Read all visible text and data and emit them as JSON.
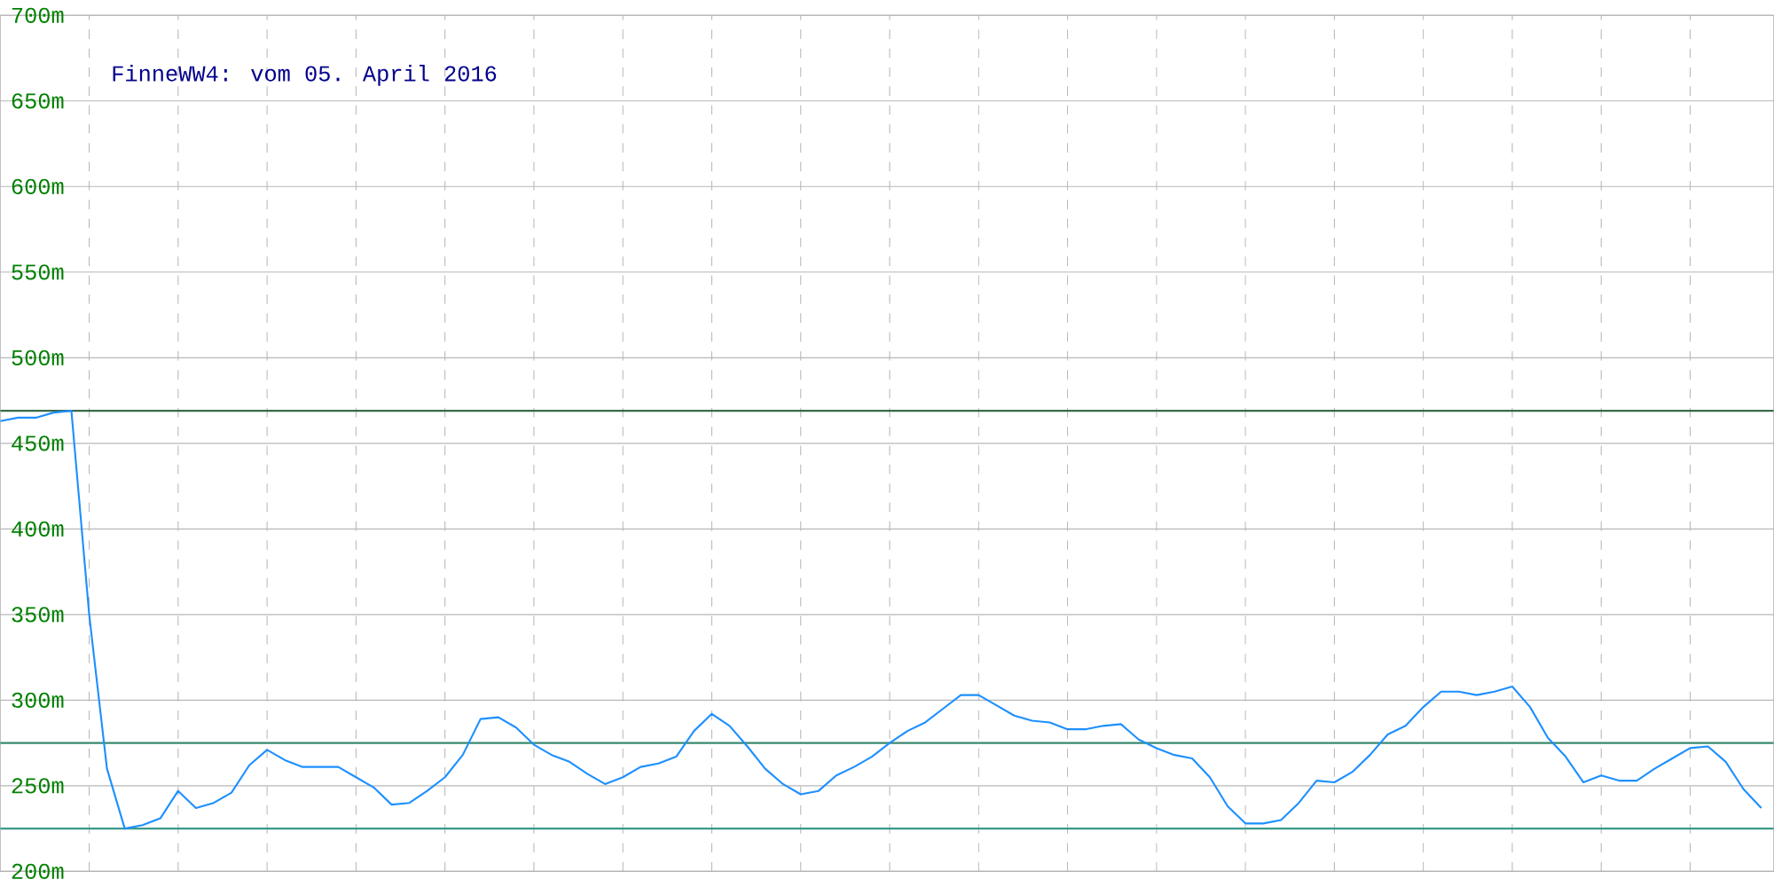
{
  "chart_data": {
    "type": "line",
    "title": "FinneWW4: vom 05. April 2016",
    "categories": [
      null,
      null,
      null,
      null,
      null,
      null,
      null,
      null,
      null,
      null,
      null,
      null,
      null,
      null,
      null,
      null,
      null,
      null,
      null,
      null,
      null,
      null,
      null,
      null,
      null,
      null,
      null,
      null,
      null,
      null,
      null,
      null,
      null,
      null,
      null,
      null,
      null,
      null,
      null,
      null,
      null,
      null,
      null,
      null,
      null,
      null,
      null,
      null,
      null,
      null,
      null,
      null,
      null,
      null,
      null,
      null,
      null,
      null,
      null,
      null,
      null,
      null,
      null,
      null,
      null,
      null,
      null,
      null,
      null,
      null,
      null,
      null,
      null,
      null,
      null,
      null,
      null,
      null,
      null,
      null,
      null,
      null,
      null,
      null,
      null,
      null,
      null,
      null,
      null,
      null,
      null,
      null,
      null,
      null,
      null,
      null,
      null,
      null,
      null,
      null
    ],
    "series": [
      {
        "color": "#1e90ff",
        "values": [
          463,
          465,
          465,
          468,
          469,
          350,
          260,
          225,
          227,
          231,
          247,
          237,
          240,
          246,
          262,
          271,
          265,
          261,
          261,
          261,
          255,
          249,
          239,
          240,
          247,
          255,
          268,
          289,
          290,
          284,
          274,
          268,
          264,
          257,
          251,
          255,
          261,
          263,
          267,
          282,
          292,
          285,
          273,
          260,
          251,
          245,
          247,
          256,
          261,
          267,
          275,
          282,
          287,
          295,
          303,
          303,
          297,
          291,
          288,
          287,
          283,
          283,
          285,
          286,
          277,
          272,
          268,
          266,
          255,
          238,
          228,
          228,
          230,
          240,
          253,
          252,
          258,
          268,
          280,
          285,
          296,
          305,
          305,
          303,
          305,
          308,
          296,
          278,
          267,
          252,
          256,
          253,
          253,
          260,
          266,
          272,
          273,
          264,
          248,
          237
        ]
      }
    ],
    "ylim": [
      200,
      700
    ],
    "yticks": [
      {
        "value": 200,
        "label": "200m"
      },
      {
        "value": 250,
        "label": "250m"
      },
      {
        "value": 300,
        "label": "300m"
      },
      {
        "value": 350,
        "label": "350m"
      },
      {
        "value": 400,
        "label": "400m"
      },
      {
        "value": 450,
        "label": "450m"
      },
      {
        "value": 500,
        "label": "500m"
      },
      {
        "value": 550,
        "label": "550m"
      },
      {
        "value": 600,
        "label": "600m"
      },
      {
        "value": 650,
        "label": "650m"
      },
      {
        "value": 700,
        "label": "700m"
      }
    ],
    "tick_labels": "y",
    "grid": true,
    "ref_lines": [
      {
        "axis": "y",
        "value": 469,
        "color": "#3a6a4a"
      },
      {
        "axis": "y",
        "value": 275,
        "color": "#3a8a70"
      },
      {
        "axis": "y",
        "value": 225,
        "color": "#3a9a8a"
      }
    ]
  }
}
